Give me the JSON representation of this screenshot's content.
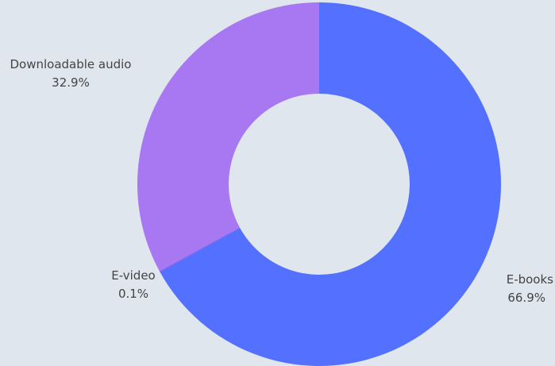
{
  "chart_data": {
    "type": "pie",
    "donut": true,
    "title": "",
    "slices": [
      {
        "label": "E-books",
        "value": 66.9,
        "percent_label": "66.9%",
        "color": "#5470ff"
      },
      {
        "label": "E-video",
        "value": 0.1,
        "percent_label": "0.1%",
        "color": "#7d5cf0"
      },
      {
        "label": "Downloadable audio",
        "value": 32.9,
        "percent_label": "32.9%",
        "color": "#a778f2"
      }
    ],
    "legend": "none",
    "background": "#dfe6ee"
  }
}
